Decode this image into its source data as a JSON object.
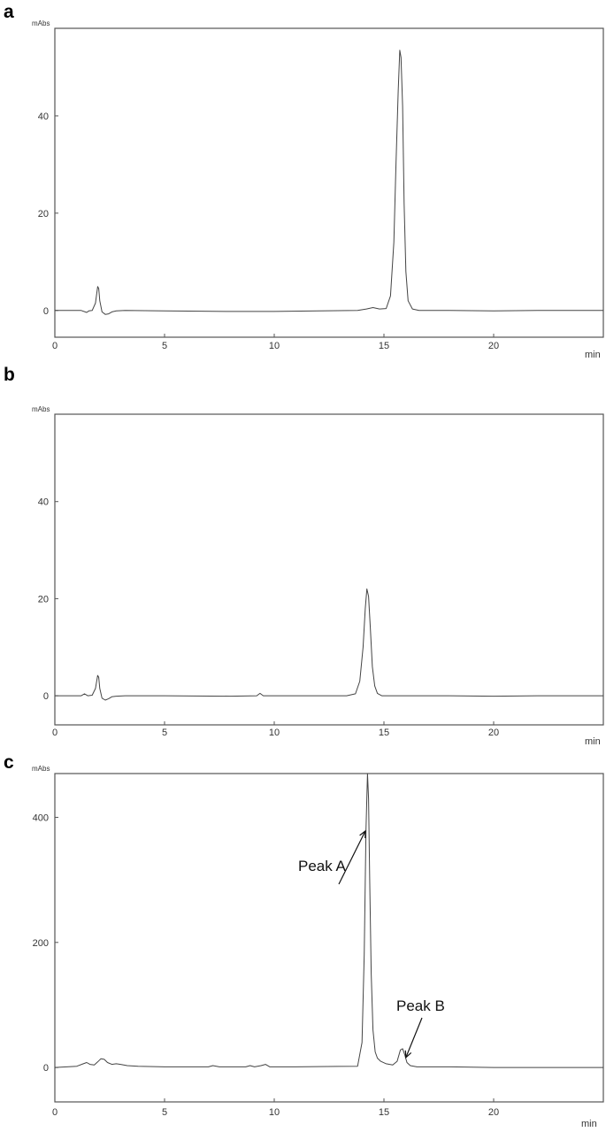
{
  "chart_data": [
    {
      "panel_label": "a",
      "type": "line",
      "ylabel": "mAbs",
      "xlabel": "min",
      "xlim": [
        0,
        25
      ],
      "ylim": [
        -5.5,
        58
      ],
      "x_ticks": [
        0,
        5,
        10,
        15,
        20
      ],
      "x_tick_labels": [
        "0",
        "5",
        "10",
        "15",
        "20"
      ],
      "y_ticks": [
        0,
        20,
        40
      ],
      "y_tick_labels": [
        "0",
        "20",
        "40"
      ],
      "grid": false,
      "series": [
        {
          "x": [
            0,
            1.2,
            1.45,
            1.55,
            1.7,
            1.85,
            1.95,
            2.0,
            2.05,
            2.15,
            2.3,
            2.45,
            2.6,
            2.8,
            3.2,
            5,
            8,
            10,
            12,
            13.8,
            14.2,
            14.5,
            14.8,
            15.1,
            15.3,
            15.45,
            15.55,
            15.65,
            15.72,
            15.78,
            15.85,
            15.92,
            16.0,
            16.1,
            16.3,
            16.6,
            18,
            20,
            22,
            25
          ],
          "y": [
            0,
            0,
            -0.4,
            -0.1,
            0,
            1.5,
            4.9,
            4.5,
            2.0,
            -0.3,
            -0.8,
            -0.7,
            -0.3,
            -0.1,
            0,
            -0.1,
            -0.2,
            -0.2,
            -0.1,
            0,
            0.3,
            0.6,
            0.3,
            0.4,
            3.0,
            14.0,
            30.0,
            45.0,
            53.5,
            52.0,
            42.0,
            22.0,
            8.0,
            2.0,
            0.3,
            0,
            0,
            -0.1,
            0,
            0
          ]
        }
      ],
      "annotations": []
    },
    {
      "panel_label": "b",
      "type": "line",
      "ylabel": "mAbs",
      "xlabel": "min",
      "xlim": [
        0,
        25
      ],
      "ylim": [
        -6,
        58
      ],
      "x_ticks": [
        0,
        5,
        10,
        15,
        20
      ],
      "x_tick_labels": [
        "0",
        "5",
        "10",
        "15",
        "20"
      ],
      "y_ticks": [
        0,
        20,
        40
      ],
      "y_tick_labels": [
        "0",
        "20",
        "40"
      ],
      "grid": false,
      "series": [
        {
          "x": [
            0,
            1.2,
            1.35,
            1.5,
            1.7,
            1.85,
            1.95,
            2.0,
            2.05,
            2.15,
            2.3,
            2.45,
            2.6,
            2.8,
            3.2,
            5,
            8,
            9.2,
            9.35,
            9.5,
            11,
            13.3,
            13.7,
            13.9,
            14.05,
            14.15,
            14.22,
            14.3,
            14.38,
            14.47,
            14.58,
            14.7,
            14.9,
            15.3,
            18,
            20,
            22,
            25
          ],
          "y": [
            0,
            0,
            0.4,
            0,
            0.1,
            1.5,
            4.2,
            3.8,
            1.5,
            -0.5,
            -0.9,
            -0.6,
            -0.2,
            -0.1,
            0,
            0,
            -0.1,
            0,
            0.5,
            0,
            0,
            0,
            0.4,
            3.0,
            10.0,
            18.0,
            22.0,
            20.5,
            14.0,
            6.0,
            2.0,
            0.5,
            0,
            0,
            0,
            -0.1,
            0,
            0
          ]
        }
      ],
      "annotations": []
    },
    {
      "panel_label": "c",
      "type": "line",
      "ylabel": "mAbs",
      "xlabel": "min",
      "xlim": [
        0,
        25
      ],
      "ylim": [
        -55,
        470
      ],
      "x_ticks": [
        0,
        5,
        10,
        15,
        20
      ],
      "x_tick_labels": [
        "0",
        "5",
        "10",
        "15",
        "20"
      ],
      "y_ticks": [
        0,
        200,
        400
      ],
      "y_tick_labels": [
        "0",
        "200",
        "400"
      ],
      "grid": false,
      "series": [
        {
          "x": [
            0,
            1.0,
            1.3,
            1.45,
            1.6,
            1.8,
            1.95,
            2.1,
            2.25,
            2.4,
            2.6,
            2.8,
            3.0,
            3.3,
            3.8,
            5,
            7,
            7.2,
            7.5,
            8.7,
            8.9,
            9.1,
            9.4,
            9.6,
            9.8,
            11,
            13.8,
            14.0,
            14.1,
            14.18,
            14.25,
            14.3,
            14.35,
            14.42,
            14.5,
            14.6,
            14.7,
            14.85,
            15.1,
            15.4,
            15.6,
            15.75,
            15.85,
            15.95,
            16.05,
            16.2,
            16.5,
            18,
            20,
            22,
            25
          ],
          "y": [
            0,
            2,
            6,
            8,
            5,
            4,
            9,
            14,
            13,
            8,
            5,
            6,
            5,
            3,
            2,
            1,
            1,
            3,
            1,
            1,
            3,
            1,
            3,
            5,
            1,
            1,
            2,
            40,
            180,
            380,
            470,
            430,
            300,
            150,
            60,
            25,
            15,
            10,
            6,
            4,
            10,
            28,
            30,
            20,
            8,
            3,
            1,
            1,
            0,
            0,
            0
          ]
        }
      ],
      "annotations": [
        {
          "text": "Peak A",
          "points_to": [
            14.15,
            378
          ]
        },
        {
          "text": "Peak B",
          "points_to": [
            16.0,
            16
          ]
        }
      ]
    }
  ]
}
